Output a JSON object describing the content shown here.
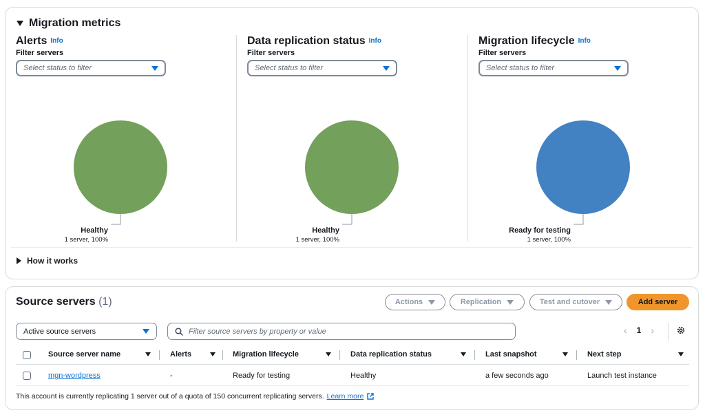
{
  "metrics": {
    "title": "Migration metrics",
    "how_it_works": "How it works",
    "columns": [
      {
        "title": "Alerts",
        "info": "Info",
        "filter_label": "Filter servers",
        "filter_placeholder": "Select status to filter",
        "slice_label": "Healthy",
        "slice_sub": "1 server, 100%",
        "slice_value": 100,
        "slice_color": "#73a05a"
      },
      {
        "title": "Data replication status",
        "info": "Info",
        "filter_label": "Filter servers",
        "filter_placeholder": "Select status to filter",
        "slice_label": "Healthy",
        "slice_sub": "1 server, 100%",
        "slice_value": 100,
        "slice_color": "#73a05a"
      },
      {
        "title": "Migration lifecycle",
        "info": "Info",
        "filter_label": "Filter servers",
        "filter_placeholder": "Select status to filter",
        "slice_label": "Ready for testing",
        "slice_sub": "1 server, 100%",
        "slice_value": 100,
        "slice_color": "#4282c2"
      }
    ]
  },
  "servers": {
    "title": "Source servers",
    "count": "(1)",
    "buttons": {
      "actions": "Actions",
      "replication": "Replication",
      "test_cutover": "Test and cutover",
      "add_server": "Add server"
    },
    "filter_select": "Active source servers",
    "search_placeholder": "Filter source servers by property or value",
    "pager": {
      "prev": "‹",
      "page": "1",
      "next": "›"
    },
    "columns": [
      "Source server name",
      "Alerts",
      "Migration lifecycle",
      "Data replication status",
      "Last snapshot",
      "Next step"
    ],
    "rows": [
      {
        "name": "mgn-wordpress",
        "alerts": "-",
        "lifecycle": "Ready for testing",
        "replication": "Healthy",
        "snapshot": "a few seconds ago",
        "next_step": "Launch test instance"
      }
    ],
    "footer": "This account is currently replicating 1 server out of a quota of 150 concurrent replicating servers.",
    "footer_link": "Learn more"
  },
  "colors": {
    "accent": "#0972d3",
    "primary_button": "#f0952b",
    "healthy": "#73a05a",
    "lifecycle": "#4282c2"
  }
}
